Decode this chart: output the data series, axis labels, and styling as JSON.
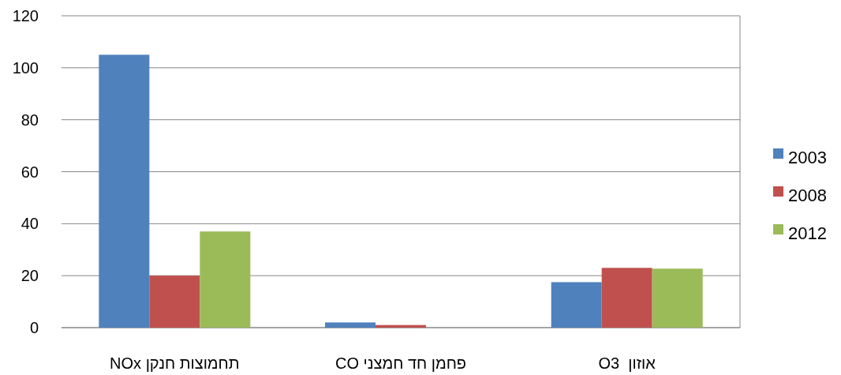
{
  "chart_data": {
    "type": "bar",
    "categories": [
      "תחמוצות חנקן NOx",
      "פחמן חד חמצני CO",
      "אוזון  O3"
    ],
    "series": [
      {
        "name": "2003",
        "color": "#4f81bd",
        "values": [
          105,
          2,
          17.5
        ]
      },
      {
        "name": "2008",
        "color": "#c0504d",
        "values": [
          20,
          1,
          23
        ]
      },
      {
        "name": "2012",
        "color": "#9bbb59",
        "values": [
          37,
          0,
          22.7
        ]
      }
    ],
    "ylim": [
      0,
      120
    ],
    "yticks": [
      0,
      20,
      40,
      60,
      80,
      100,
      120
    ],
    "grid": "y",
    "legend": "right"
  }
}
